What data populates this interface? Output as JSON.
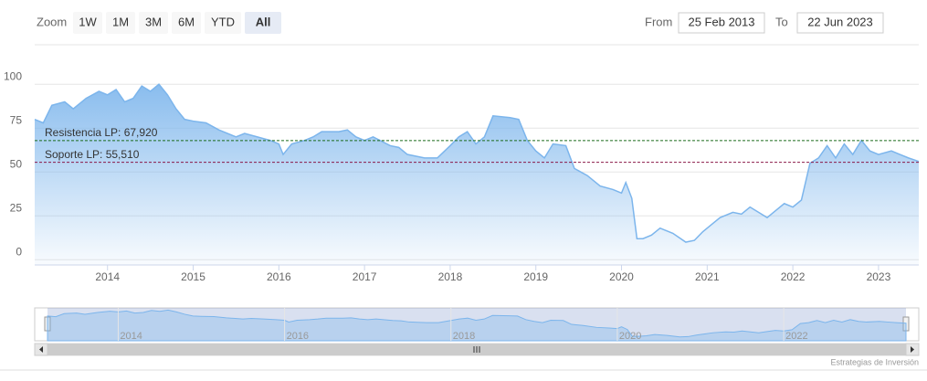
{
  "range_selector": {
    "zoom_label": "Zoom",
    "buttons": [
      "1W",
      "1M",
      "3M",
      "6M",
      "YTD",
      "All"
    ],
    "selected": 5,
    "from_label": "From",
    "from": "25 Feb 2013",
    "to_label": "To",
    "to": "22 Jun 2023"
  },
  "credits": "Estrategias de Inversión",
  "chart_data": {
    "type": "area",
    "color": "#7cb5ec",
    "x": [
      2013.15,
      2013.25,
      2013.35,
      2013.5,
      2013.6,
      2013.75,
      2013.9,
      2014.0,
      2014.1,
      2014.2,
      2014.3,
      2014.4,
      2014.5,
      2014.6,
      2014.7,
      2014.8,
      2014.9,
      2015.0,
      2015.15,
      2015.3,
      2015.5,
      2015.6,
      2015.75,
      2015.9,
      2016.0,
      2016.05,
      2016.15,
      2016.3,
      2016.4,
      2016.5,
      2016.7,
      2016.8,
      2016.9,
      2017.0,
      2017.1,
      2017.3,
      2017.4,
      2017.5,
      2017.7,
      2017.85,
      2018.0,
      2018.1,
      2018.2,
      2018.3,
      2018.4,
      2018.5,
      2018.7,
      2018.8,
      2018.9,
      2019.0,
      2019.1,
      2019.2,
      2019.35,
      2019.45,
      2019.6,
      2019.75,
      2019.9,
      2020.0,
      2020.05,
      2020.12,
      2020.18,
      2020.25,
      2020.35,
      2020.45,
      2020.6,
      2020.75,
      2020.85,
      2020.95,
      2021.05,
      2021.15,
      2021.3,
      2021.4,
      2021.5,
      2021.6,
      2021.7,
      2021.8,
      2021.9,
      2022.0,
      2022.1,
      2022.2,
      2022.3,
      2022.4,
      2022.5,
      2022.6,
      2022.7,
      2022.8,
      2022.9,
      2023.0,
      2023.15,
      2023.25,
      2023.35,
      2023.47
    ],
    "values": [
      80,
      78,
      88,
      90,
      86,
      92,
      96,
      94,
      97,
      90,
      92,
      99,
      96,
      100,
      94,
      86,
      80,
      79,
      78,
      74,
      70,
      72,
      70,
      68,
      66,
      60,
      66,
      68,
      70,
      73,
      73,
      74,
      70,
      68,
      70,
      65,
      64,
      60,
      58,
      58,
      65,
      70,
      73,
      66,
      70,
      82,
      81,
      80,
      68,
      62,
      58,
      66,
      65,
      52,
      48,
      42,
      40,
      38,
      44,
      35,
      12,
      12,
      14,
      18,
      15,
      10,
      11,
      16,
      20,
      24,
      27,
      26,
      30,
      27,
      24,
      28,
      32,
      30,
      34,
      55,
      58,
      65,
      58,
      66,
      60,
      68,
      62,
      60,
      62,
      60,
      58,
      56
    ],
    "xlim": [
      2013.15,
      2023.47
    ],
    "xticks": [
      2014,
      2015,
      2016,
      2017,
      2018,
      2019,
      2020,
      2021,
      2022,
      2023
    ],
    "ylim": [
      -3,
      122
    ],
    "yticks": [
      0,
      25,
      50,
      75,
      100
    ],
    "grid": true,
    "plot_lines": [
      {
        "label": "Resistencia LP: 67,920",
        "value": 67.92,
        "color": "#1b6b1b"
      },
      {
        "label": "Soporte LP: 55,510",
        "value": 55.51,
        "color": "#8b1a4a"
      }
    ],
    "navigator_ticks": [
      2014,
      2016,
      2018,
      2020,
      2022
    ]
  }
}
